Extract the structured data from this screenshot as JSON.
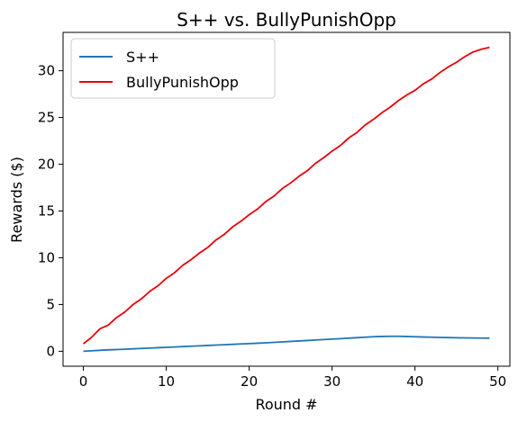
{
  "chart_data": {
    "type": "line",
    "title": "S++ vs. BullyPunishOpp",
    "xlabel": "Round #",
    "ylabel": "Rewards ($)",
    "xlim": [
      -2.45,
      51.45
    ],
    "ylim": [
      -1.6,
      34.1
    ],
    "xticks": [
      0,
      10,
      20,
      30,
      40,
      50
    ],
    "yticks": [
      0,
      5,
      10,
      15,
      20,
      25,
      30
    ],
    "grid": false,
    "legend_position": "top-left",
    "series": [
      {
        "name": "S++",
        "color": "#1f77b4",
        "x": [
          0,
          1,
          2,
          3,
          4,
          5,
          6,
          7,
          8,
          9,
          10,
          11,
          12,
          13,
          14,
          15,
          16,
          17,
          18,
          19,
          20,
          21,
          22,
          23,
          24,
          25,
          26,
          27,
          28,
          29,
          30,
          31,
          32,
          33,
          34,
          35,
          36,
          37,
          38,
          39,
          40,
          41,
          42,
          43,
          44,
          45,
          46,
          47,
          48,
          49
        ],
        "y": [
          0.0,
          0.05,
          0.1,
          0.15,
          0.18,
          0.22,
          0.26,
          0.3,
          0.34,
          0.38,
          0.42,
          0.46,
          0.5,
          0.54,
          0.58,
          0.62,
          0.66,
          0.7,
          0.74,
          0.78,
          0.82,
          0.86,
          0.9,
          0.95,
          1.0,
          1.05,
          1.1,
          1.15,
          1.2,
          1.25,
          1.3,
          1.35,
          1.4,
          1.45,
          1.5,
          1.55,
          1.58,
          1.6,
          1.6,
          1.58,
          1.55,
          1.52,
          1.5,
          1.48,
          1.46,
          1.44,
          1.43,
          1.42,
          1.41,
          1.4
        ]
      },
      {
        "name": "BullyPunishOpp",
        "color": "#e8000b",
        "x": [
          0,
          1,
          2,
          3,
          4,
          5,
          6,
          7,
          8,
          9,
          10,
          11,
          12,
          13,
          14,
          15,
          16,
          17,
          18,
          19,
          20,
          21,
          22,
          23,
          24,
          25,
          26,
          27,
          28,
          29,
          30,
          31,
          32,
          33,
          34,
          35,
          36,
          37,
          38,
          39,
          40,
          41,
          42,
          43,
          44,
          45,
          46,
          47,
          48,
          49
        ],
        "y": [
          0.8,
          1.5,
          2.4,
          2.8,
          3.6,
          4.2,
          5.0,
          5.6,
          6.4,
          7.0,
          7.8,
          8.4,
          9.2,
          9.8,
          10.5,
          11.1,
          11.9,
          12.5,
          13.3,
          13.9,
          14.6,
          15.2,
          16.0,
          16.6,
          17.4,
          18.0,
          18.7,
          19.3,
          20.1,
          20.7,
          21.4,
          22.0,
          22.8,
          23.4,
          24.2,
          24.8,
          25.5,
          26.1,
          26.8,
          27.4,
          27.9,
          28.6,
          29.1,
          29.8,
          30.4,
          30.9,
          31.5,
          32.0,
          32.3,
          32.5
        ]
      }
    ]
  }
}
